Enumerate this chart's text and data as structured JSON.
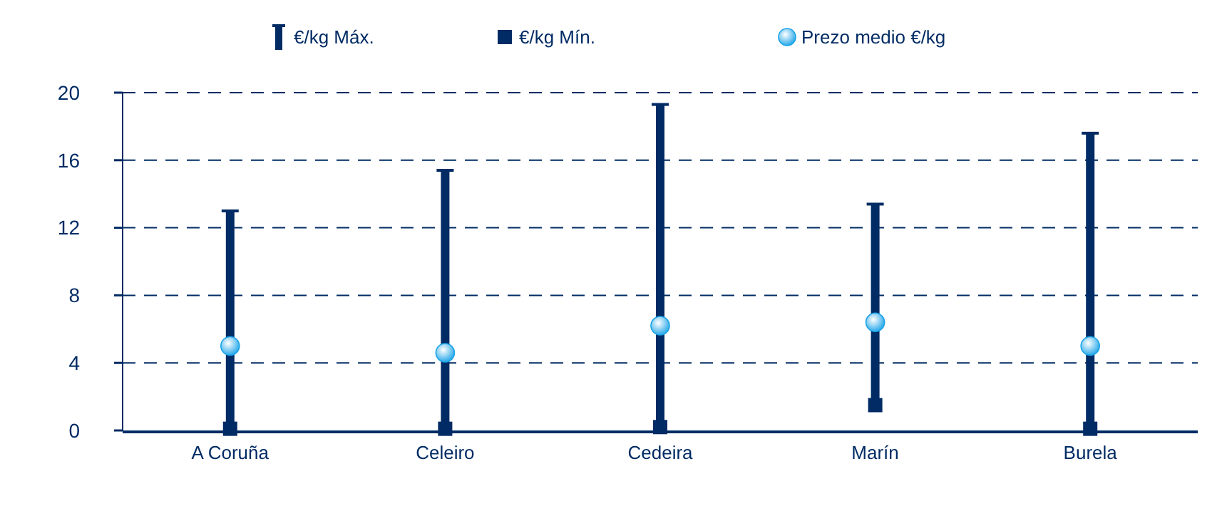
{
  "chart_data": {
    "type": "bar",
    "categories": [
      "A Coruña",
      "Celeiro",
      "Cedeira",
      "Marín",
      "Burela"
    ],
    "series": [
      {
        "name": "€/kg Máx.",
        "color": "#002b64",
        "base": [
          0.1,
          0.1,
          0.2,
          1.5,
          0.1
        ],
        "values": [
          12.9,
          15.3,
          19.1,
          11.9,
          17.5
        ]
      },
      {
        "name": "€/kg Mín.",
        "type": "scatter",
        "marker": "square",
        "color": "#002b64",
        "values": [
          0.1,
          0.1,
          0.2,
          1.5,
          0.1
        ]
      },
      {
        "name": "Prezo medio €/kg",
        "type": "scatter",
        "marker": "circle",
        "color": "#1aa3e8",
        "values": [
          5.0,
          4.6,
          6.2,
          6.4,
          5.0
        ]
      }
    ],
    "ylim": [
      0,
      20
    ],
    "yticks": [
      0,
      4,
      8,
      12,
      16,
      20
    ],
    "grid": "y",
    "legend": "top"
  }
}
